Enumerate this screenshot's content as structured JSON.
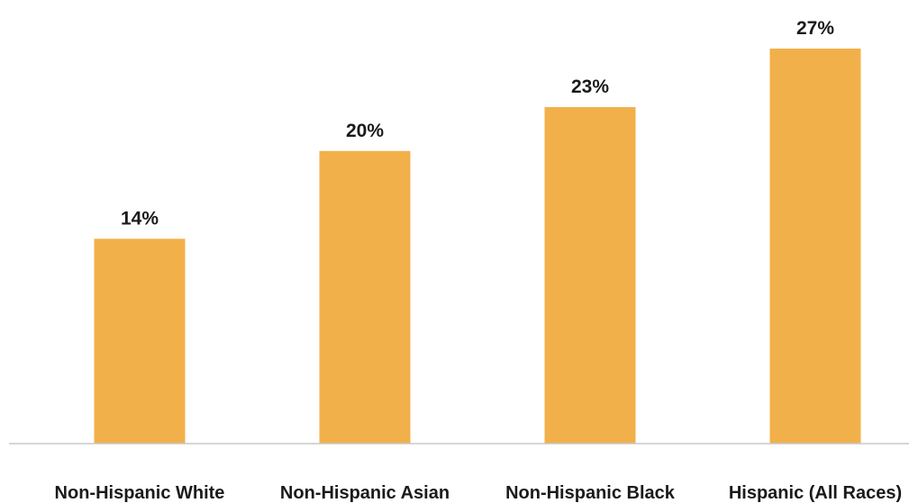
{
  "chart_data": {
    "type": "bar",
    "categories": [
      "Non-Hispanic White",
      "Non-Hispanic Asian",
      "Non-Hispanic Black",
      "Hispanic (All Races)"
    ],
    "values": [
      14,
      20,
      23,
      27
    ],
    "value_labels": [
      "14%",
      "20%",
      "23%",
      "27%"
    ],
    "title": "",
    "xlabel": "",
    "ylabel": "",
    "ylim": [
      0,
      27
    ],
    "grid": false,
    "legend": "none",
    "bar_color": "#F2B04A",
    "axis_color": "#c8c8c8",
    "text_color": "#1a1a1a"
  }
}
